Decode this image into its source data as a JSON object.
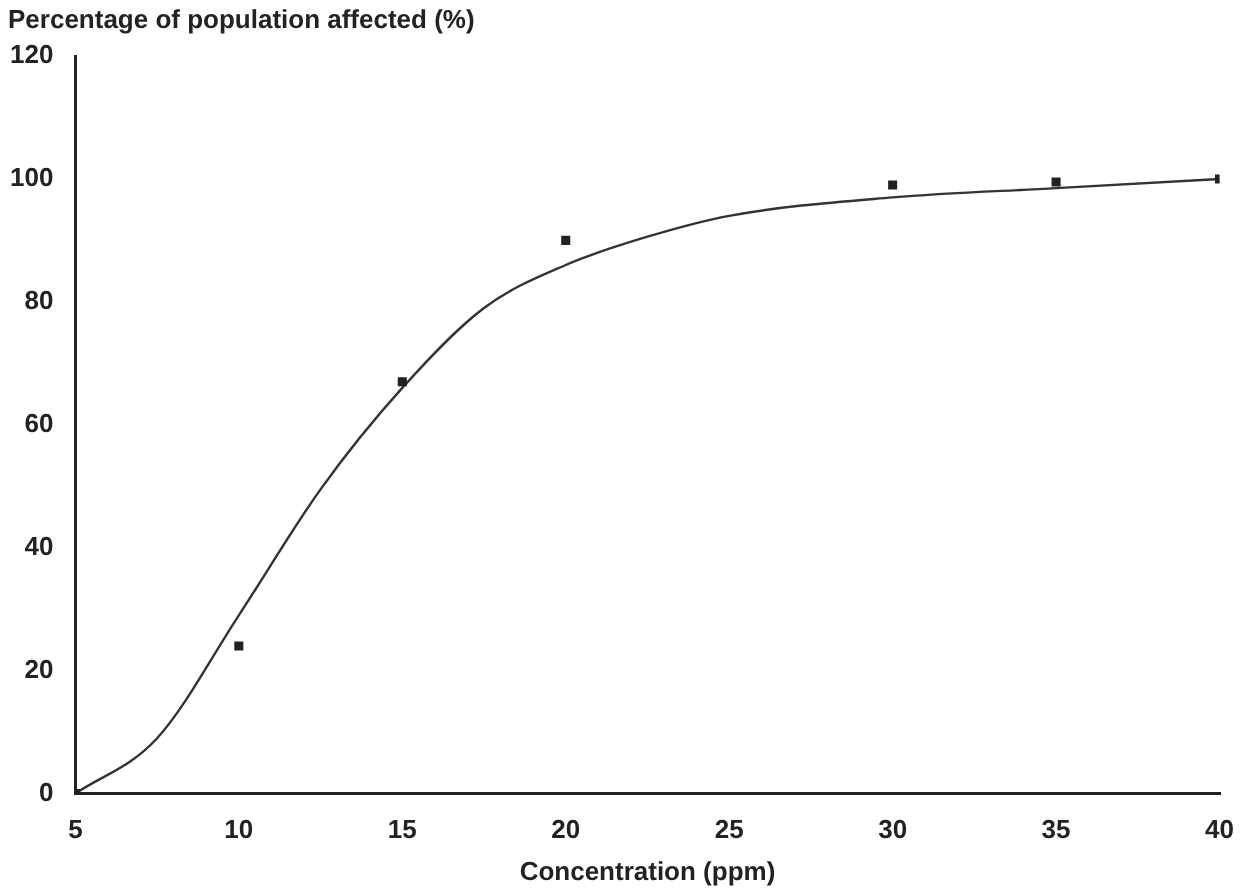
{
  "chart_data": {
    "type": "scatter",
    "ylabel": "Percentage of population affected (%)",
    "xlabel": "Concentration (ppm)",
    "xlim": [
      5,
      40
    ],
    "xticks": [
      5,
      10,
      15,
      20,
      25,
      30,
      35,
      40
    ],
    "ylim": [
      0,
      120
    ],
    "yticks": [
      0,
      20,
      40,
      60,
      80,
      100,
      120
    ],
    "grid": false,
    "legend": false,
    "series": [
      {
        "color": "#222222",
        "marker": "square",
        "x": [
          5,
          10,
          15,
          20,
          30,
          35,
          40
        ],
        "values": [
          0,
          24,
          67,
          90,
          99,
          99.5,
          100
        ]
      },
      {
        "type": "line",
        "color": "#333333",
        "marker": "none",
        "x": [
          5,
          7.5,
          10,
          12.5,
          15,
          17.5,
          20,
          22.5,
          25,
          30,
          35,
          40
        ],
        "values": [
          0,
          9,
          29,
          49.5,
          66,
          79,
          86,
          90.6,
          94,
          97,
          98.5,
          100
        ]
      }
    ]
  }
}
